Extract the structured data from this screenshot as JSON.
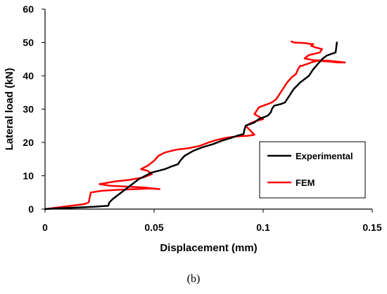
{
  "chart_data": {
    "type": "line",
    "xlabel": "Displacement (mm)",
    "ylabel": "Lateral load (kN)",
    "xlim": [
      0,
      0.15
    ],
    "ylim": [
      0,
      60
    ],
    "xticks": [
      0,
      0.05,
      0.1,
      0.15
    ],
    "xtick_labels": [
      "0",
      "0.05",
      "0.1",
      "0.15"
    ],
    "yticks": [
      0,
      10,
      20,
      30,
      40,
      50,
      60
    ],
    "ytick_labels": [
      "0",
      "10",
      "20",
      "30",
      "40",
      "50",
      "60"
    ],
    "grid": false,
    "legend_position": "right",
    "series": [
      {
        "name": "Experimental",
        "color": "#000000",
        "x": [
          0,
          0.004,
          0.012,
          0.022,
          0.029,
          0.0295,
          0.031,
          0.034,
          0.037,
          0.04,
          0.043,
          0.046,
          0.049,
          0.052,
          0.055,
          0.058,
          0.061,
          0.062,
          0.064,
          0.068,
          0.072,
          0.077,
          0.081,
          0.085,
          0.088,
          0.091,
          0.0915,
          0.092,
          0.093,
          0.094,
          0.096,
          0.098,
          0.1,
          0.102,
          0.1035,
          0.104,
          0.105,
          0.108,
          0.11,
          0.112,
          0.114,
          0.117,
          0.119,
          0.121,
          0.123,
          0.125,
          0.127,
          0.129,
          0.131,
          0.1332,
          0.1335,
          0.1338
        ],
        "y": [
          0,
          0.2,
          0.4,
          0.7,
          1.0,
          2.0,
          3.0,
          4.5,
          6.0,
          7.5,
          9.0,
          10.0,
          11.0,
          11.5,
          12.0,
          12.8,
          13.5,
          14.5,
          16.0,
          17.5,
          18.5,
          19.5,
          20.5,
          21.3,
          22.0,
          22.5,
          24.0,
          25.0,
          25.3,
          25.5,
          26.0,
          27.0,
          27.5,
          28.0,
          29.0,
          30.0,
          31.0,
          31.5,
          32.0,
          34.0,
          36.0,
          38.0,
          39.0,
          40.0,
          42.0,
          43.5,
          45.0,
          46.0,
          46.5,
          47.0,
          48.5,
          50.0
        ]
      },
      {
        "name": "FEM",
        "color": "#ff0000",
        "x": [
          0,
          0.006,
          0.012,
          0.018,
          0.02,
          0.0205,
          0.021,
          0.026,
          0.034,
          0.042,
          0.048,
          0.0525,
          0.045,
          0.03,
          0.025,
          0.032,
          0.039,
          0.045,
          0.049,
          0.047,
          0.044,
          0.047,
          0.05,
          0.052,
          0.055,
          0.06,
          0.066,
          0.071,
          0.075,
          0.079,
          0.083,
          0.088,
          0.093,
          0.096,
          0.092,
          0.095,
          0.097,
          0.1,
          0.096,
          0.097,
          0.098,
          0.1,
          0.102,
          0.104,
          0.106,
          0.107,
          0.109,
          0.111,
          0.113,
          0.115,
          0.116,
          0.117,
          0.118,
          0.119,
          0.12,
          0.122,
          0.125,
          0.13,
          0.134,
          0.1375,
          0.13,
          0.123,
          0.119,
          0.121,
          0.126,
          0.127,
          0.124,
          0.122,
          0.123,
          0.121,
          0.1195,
          0.114,
          0.113
        ],
        "y": [
          0,
          0.5,
          1.0,
          1.5,
          2.0,
          3.5,
          5.0,
          5.5,
          5.8,
          6.0,
          6.2,
          6.0,
          6.5,
          7.0,
          7.5,
          8.3,
          8.8,
          9.5,
          10.5,
          11.5,
          12.0,
          13.0,
          14.5,
          16.0,
          17.0,
          17.8,
          18.3,
          19.0,
          20.0,
          20.8,
          21.4,
          21.8,
          22.0,
          22.3,
          25.0,
          26.0,
          26.5,
          27.0,
          28.5,
          29.5,
          30.5,
          31.0,
          31.5,
          32.0,
          33.0,
          34.0,
          36.0,
          38.0,
          39.5,
          40.5,
          42.0,
          43.0,
          43.0,
          43.3,
          43.5,
          44.0,
          44.5,
          44.3,
          44.0,
          44.0,
          44.5,
          44.7,
          45.2,
          46.2,
          47.0,
          48.0,
          48.5,
          49.0,
          49.5,
          49.6,
          49.8,
          50.0,
          50.3
        ]
      }
    ]
  },
  "caption": "(b)"
}
